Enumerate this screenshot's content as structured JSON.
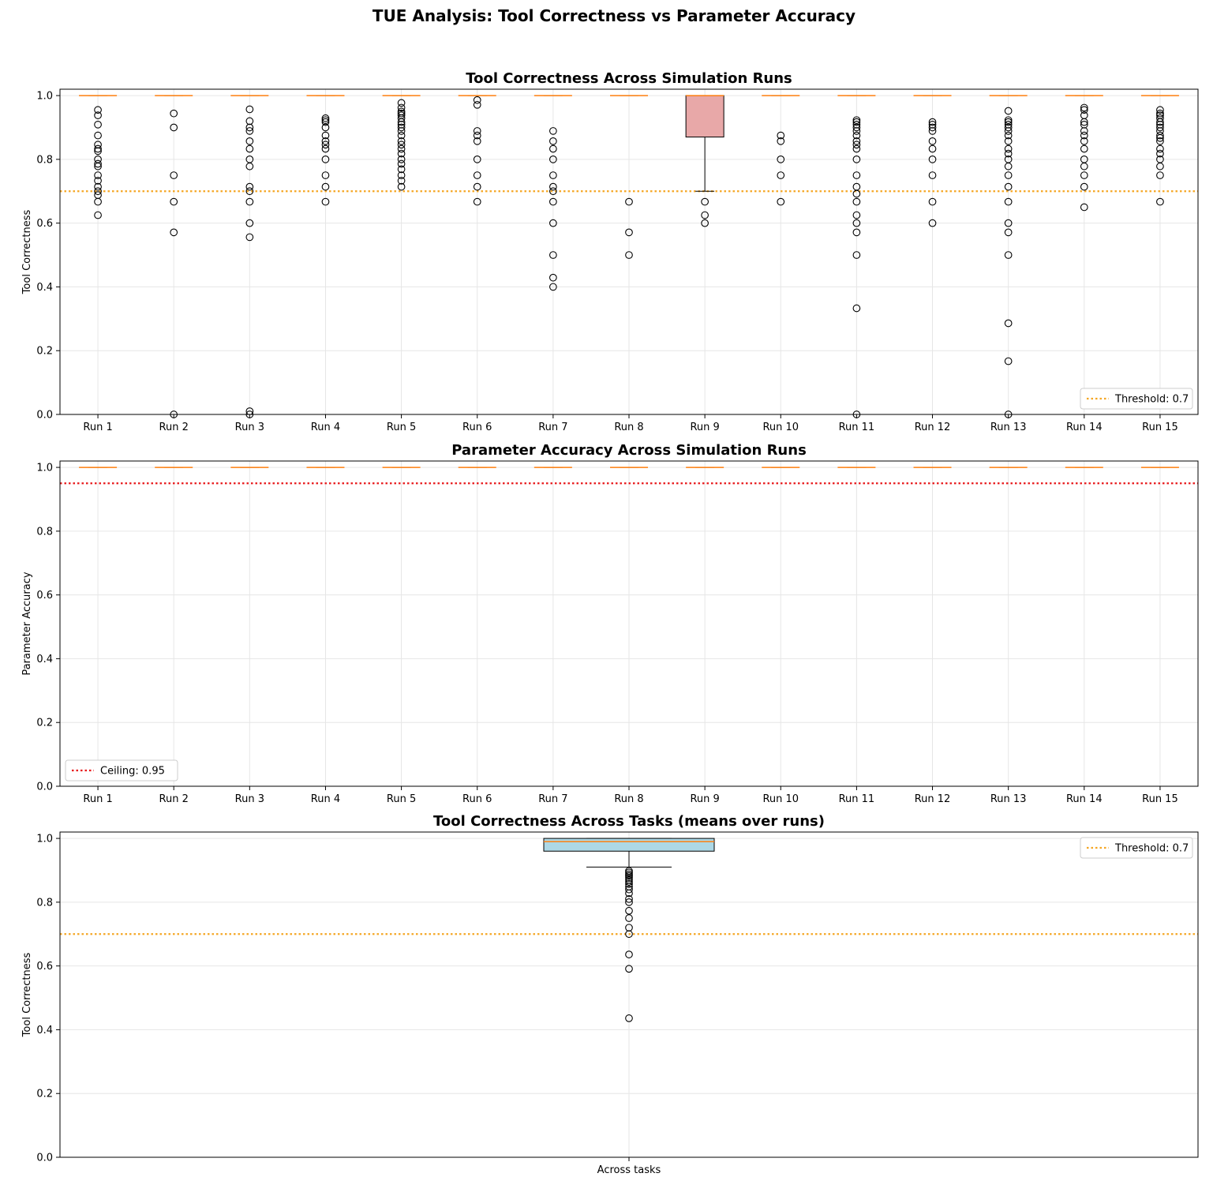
{
  "figure": {
    "suptitle": "TUE Analysis: Tool Correctness vs Parameter Accuracy"
  },
  "chart_data": [
    {
      "type": "box",
      "title": "Tool Correctness Across Simulation Runs",
      "xlabel": "",
      "ylabel": "Tool Correctness",
      "ylim": [
        0,
        1.02
      ],
      "yticks": [
        0.0,
        0.2,
        0.4,
        0.6,
        0.8,
        1.0
      ],
      "grid": true,
      "box_color": "#e8a8a8",
      "reference_line": {
        "label": "Threshold: 0.7",
        "value": 0.7,
        "color": "#f5a623",
        "style": "dotted"
      },
      "legend": {
        "position": "lower-right"
      },
      "categories": [
        "Run 1",
        "Run 2",
        "Run 3",
        "Run 4",
        "Run 5",
        "Run 6",
        "Run 7",
        "Run 8",
        "Run 9",
        "Run 10",
        "Run 11",
        "Run 12",
        "Run 13",
        "Run 14",
        "Run 15"
      ],
      "boxes": [
        {
          "q1": 1.0,
          "median": 1.0,
          "q3": 1.0,
          "whislo": 1.0,
          "whishi": 1.0,
          "fliers": [
            0.955,
            0.938,
            0.909,
            0.875,
            0.846,
            0.833,
            0.826,
            0.8,
            0.786,
            0.778,
            0.75,
            0.733,
            0.714,
            0.7,
            0.688,
            0.667,
            0.625
          ]
        },
        {
          "q1": 1.0,
          "median": 1.0,
          "q3": 1.0,
          "whislo": 1.0,
          "whishi": 1.0,
          "fliers": [
            0.944,
            0.9,
            0.75,
            0.667,
            0.571,
            0.0
          ]
        },
        {
          "q1": 1.0,
          "median": 1.0,
          "q3": 1.0,
          "whislo": 1.0,
          "whishi": 1.0,
          "fliers": [
            0.957,
            0.92,
            0.9,
            0.889,
            0.857,
            0.833,
            0.8,
            0.778,
            0.714,
            0.7,
            0.667,
            0.6,
            0.556,
            0.01,
            0.0
          ]
        },
        {
          "q1": 1.0,
          "median": 1.0,
          "q3": 1.0,
          "whislo": 1.0,
          "whishi": 1.0,
          "fliers": [
            0.929,
            0.923,
            0.917,
            0.9,
            0.875,
            0.857,
            0.846,
            0.833,
            0.8,
            0.75,
            0.714,
            0.667
          ]
        },
        {
          "q1": 1.0,
          "median": 1.0,
          "q3": 1.0,
          "whislo": 1.0,
          "whishi": 1.0,
          "fliers": [
            0.977,
            0.962,
            0.95,
            0.944,
            0.938,
            0.929,
            0.917,
            0.909,
            0.9,
            0.889,
            0.875,
            0.857,
            0.846,
            0.833,
            0.818,
            0.8,
            0.786,
            0.769,
            0.75,
            0.733,
            0.714
          ]
        },
        {
          "q1": 1.0,
          "median": 1.0,
          "q3": 1.0,
          "whislo": 1.0,
          "whishi": 1.0,
          "fliers": [
            0.986,
            0.971,
            0.889,
            0.875,
            0.857,
            0.8,
            0.75,
            0.714,
            0.667
          ]
        },
        {
          "q1": 1.0,
          "median": 1.0,
          "q3": 1.0,
          "whislo": 1.0,
          "whishi": 1.0,
          "fliers": [
            0.889,
            0.857,
            0.833,
            0.8,
            0.75,
            0.714,
            0.7,
            0.667,
            0.6,
            0.5,
            0.429,
            0.4
          ]
        },
        {
          "q1": 1.0,
          "median": 1.0,
          "q3": 1.0,
          "whislo": 1.0,
          "whishi": 1.0,
          "fliers": [
            0.667,
            0.571,
            0.5
          ]
        },
        {
          "q1": 0.87,
          "median": 1.0,
          "q3": 1.0,
          "whislo": 0.7,
          "whishi": 1.0,
          "fliers": [
            0.667,
            0.625,
            0.6
          ]
        },
        {
          "q1": 1.0,
          "median": 1.0,
          "q3": 1.0,
          "whislo": 1.0,
          "whishi": 1.0,
          "fliers": [
            0.875,
            0.857,
            0.8,
            0.75,
            0.667
          ]
        },
        {
          "q1": 1.0,
          "median": 1.0,
          "q3": 1.0,
          "whislo": 1.0,
          "whishi": 1.0,
          "fliers": [
            0.923,
            0.917,
            0.909,
            0.9,
            0.889,
            0.875,
            0.857,
            0.846,
            0.833,
            0.8,
            0.75,
            0.714,
            0.692,
            0.667,
            0.625,
            0.6,
            0.571,
            0.5,
            0.333,
            0.0
          ]
        },
        {
          "q1": 1.0,
          "median": 1.0,
          "q3": 1.0,
          "whislo": 1.0,
          "whishi": 1.0,
          "fliers": [
            0.917,
            0.909,
            0.9,
            0.889,
            0.857,
            0.833,
            0.8,
            0.75,
            0.667,
            0.6
          ]
        },
        {
          "q1": 1.0,
          "median": 1.0,
          "q3": 1.0,
          "whislo": 1.0,
          "whishi": 1.0,
          "fliers": [
            0.952,
            0.923,
            0.917,
            0.909,
            0.9,
            0.889,
            0.875,
            0.857,
            0.833,
            0.818,
            0.8,
            0.778,
            0.75,
            0.714,
            0.667,
            0.6,
            0.571,
            0.5,
            0.286,
            0.167,
            0.0
          ]
        },
        {
          "q1": 1.0,
          "median": 1.0,
          "q3": 1.0,
          "whislo": 1.0,
          "whishi": 1.0,
          "fliers": [
            0.962,
            0.955,
            0.938,
            0.917,
            0.909,
            0.889,
            0.875,
            0.857,
            0.833,
            0.8,
            0.778,
            0.75,
            0.714,
            0.65
          ]
        },
        {
          "q1": 1.0,
          "median": 1.0,
          "q3": 1.0,
          "whislo": 1.0,
          "whishi": 1.0,
          "fliers": [
            0.955,
            0.944,
            0.938,
            0.929,
            0.917,
            0.909,
            0.9,
            0.889,
            0.875,
            0.867,
            0.857,
            0.833,
            0.818,
            0.8,
            0.778,
            0.75,
            0.667
          ]
        }
      ]
    },
    {
      "type": "box",
      "title": "Parameter Accuracy Across Simulation Runs",
      "xlabel": "",
      "ylabel": "Parameter Accuracy",
      "ylim": [
        0,
        1.02
      ],
      "yticks": [
        0.0,
        0.2,
        0.4,
        0.6,
        0.8,
        1.0
      ],
      "grid": true,
      "box_color": "#add8e6",
      "reference_line": {
        "label": "Ceiling: 0.95",
        "value": 0.95,
        "color": "#e8191b",
        "style": "dotted"
      },
      "legend": {
        "position": "lower-left"
      },
      "categories": [
        "Run 1",
        "Run 2",
        "Run 3",
        "Run 4",
        "Run 5",
        "Run 6",
        "Run 7",
        "Run 8",
        "Run 9",
        "Run 10",
        "Run 11",
        "Run 12",
        "Run 13",
        "Run 14",
        "Run 15"
      ],
      "boxes": [
        {
          "q1": 1.0,
          "median": 1.0,
          "q3": 1.0,
          "whislo": 1.0,
          "whishi": 1.0,
          "fliers": []
        },
        {
          "q1": 1.0,
          "median": 1.0,
          "q3": 1.0,
          "whislo": 1.0,
          "whishi": 1.0,
          "fliers": []
        },
        {
          "q1": 1.0,
          "median": 1.0,
          "q3": 1.0,
          "whislo": 1.0,
          "whishi": 1.0,
          "fliers": []
        },
        {
          "q1": 1.0,
          "median": 1.0,
          "q3": 1.0,
          "whislo": 1.0,
          "whishi": 1.0,
          "fliers": []
        },
        {
          "q1": 1.0,
          "median": 1.0,
          "q3": 1.0,
          "whislo": 1.0,
          "whishi": 1.0,
          "fliers": []
        },
        {
          "q1": 1.0,
          "median": 1.0,
          "q3": 1.0,
          "whislo": 1.0,
          "whishi": 1.0,
          "fliers": []
        },
        {
          "q1": 1.0,
          "median": 1.0,
          "q3": 1.0,
          "whislo": 1.0,
          "whishi": 1.0,
          "fliers": []
        },
        {
          "q1": 1.0,
          "median": 1.0,
          "q3": 1.0,
          "whislo": 1.0,
          "whishi": 1.0,
          "fliers": []
        },
        {
          "q1": 1.0,
          "median": 1.0,
          "q3": 1.0,
          "whislo": 1.0,
          "whishi": 1.0,
          "fliers": []
        },
        {
          "q1": 1.0,
          "median": 1.0,
          "q3": 1.0,
          "whislo": 1.0,
          "whishi": 1.0,
          "fliers": []
        },
        {
          "q1": 1.0,
          "median": 1.0,
          "q3": 1.0,
          "whislo": 1.0,
          "whishi": 1.0,
          "fliers": []
        },
        {
          "q1": 1.0,
          "median": 1.0,
          "q3": 1.0,
          "whislo": 1.0,
          "whishi": 1.0,
          "fliers": []
        },
        {
          "q1": 1.0,
          "median": 1.0,
          "q3": 1.0,
          "whislo": 1.0,
          "whishi": 1.0,
          "fliers": []
        },
        {
          "q1": 1.0,
          "median": 1.0,
          "q3": 1.0,
          "whislo": 1.0,
          "whishi": 1.0,
          "fliers": []
        },
        {
          "q1": 1.0,
          "median": 1.0,
          "q3": 1.0,
          "whislo": 1.0,
          "whishi": 1.0,
          "fliers": []
        }
      ]
    },
    {
      "type": "box",
      "title": "Tool Correctness Across Tasks (means over runs)",
      "xlabel": "",
      "ylabel": "Tool Correctness",
      "ylim": [
        0,
        1.02
      ],
      "yticks": [
        0.0,
        0.2,
        0.4,
        0.6,
        0.8,
        1.0
      ],
      "grid": true,
      "box_color": "#add8e6",
      "reference_line": {
        "label": "Threshold: 0.7",
        "value": 0.7,
        "color": "#f5a623",
        "style": "dotted"
      },
      "legend": {
        "position": "upper-right"
      },
      "categories": [
        "Across tasks"
      ],
      "boxes": [
        {
          "q1": 0.96,
          "median": 0.99,
          "q3": 1.0,
          "whislo": 0.91,
          "whishi": 1.0,
          "fliers": [
            0.898,
            0.893,
            0.887,
            0.882,
            0.876,
            0.87,
            0.864,
            0.857,
            0.849,
            0.84,
            0.828,
            0.81,
            0.8,
            0.773,
            0.75,
            0.72,
            0.7,
            0.636,
            0.591,
            0.436
          ]
        }
      ]
    }
  ]
}
